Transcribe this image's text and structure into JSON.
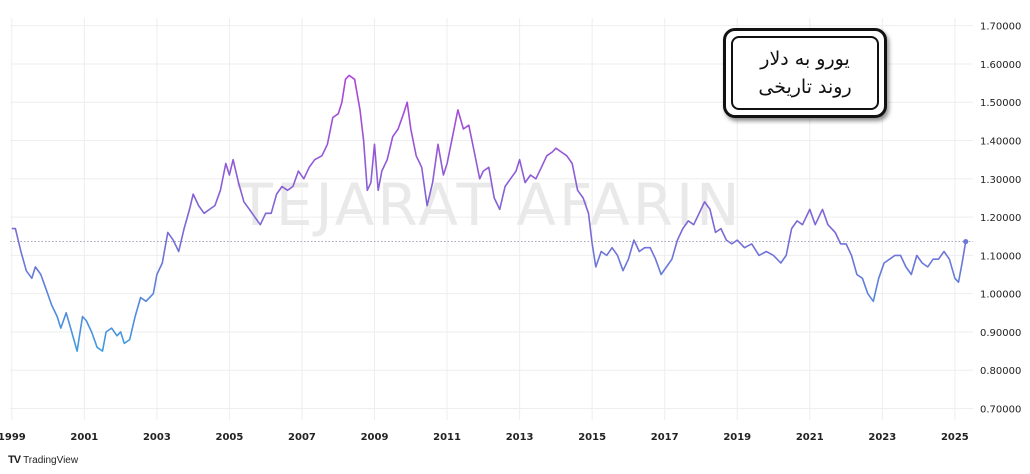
{
  "title": {
    "line1": "یورو به دلار",
    "line2": "روند تاریخی"
  },
  "watermark": "TEJARAT AFARIN",
  "brand": {
    "logo": "TV",
    "name": "TradingView"
  },
  "colors": {
    "line_start": "#3aa0e0",
    "line_mid": "#7a6ad6",
    "line_peak": "#b044d8",
    "reference": "#8888aa",
    "grid": "#eeeeee"
  },
  "chart_data": {
    "type": "line",
    "x_unit": "year",
    "xlim": [
      1998.95,
      2025.5
    ],
    "ylim": [
      0.67,
      1.72
    ],
    "y_ticks": [
      "0.70000",
      "0.80000",
      "0.90000",
      "1.00000",
      "1.10000",
      "1.20000",
      "1.30000",
      "1.40000",
      "1.50000",
      "1.60000",
      "1.70000"
    ],
    "x_ticks": [
      "1999",
      "2001",
      "2003",
      "2005",
      "2007",
      "2009",
      "2011",
      "2013",
      "2015",
      "2017",
      "2019",
      "2021",
      "2023",
      "2025"
    ],
    "reference_line": 1.136,
    "last_value": 1.136,
    "points": [
      [
        1999.0,
        1.17
      ],
      [
        1999.1,
        1.17
      ],
      [
        1999.25,
        1.11
      ],
      [
        1999.4,
        1.06
      ],
      [
        1999.55,
        1.04
      ],
      [
        1999.65,
        1.07
      ],
      [
        1999.8,
        1.05
      ],
      [
        1999.95,
        1.01
      ],
      [
        2000.1,
        0.97
      ],
      [
        2000.25,
        0.94
      ],
      [
        2000.35,
        0.91
      ],
      [
        2000.5,
        0.95
      ],
      [
        2000.65,
        0.9
      ],
      [
        2000.8,
        0.85
      ],
      [
        2000.95,
        0.94
      ],
      [
        2001.05,
        0.93
      ],
      [
        2001.2,
        0.9
      ],
      [
        2001.35,
        0.86
      ],
      [
        2001.5,
        0.85
      ],
      [
        2001.6,
        0.9
      ],
      [
        2001.75,
        0.91
      ],
      [
        2001.9,
        0.89
      ],
      [
        2002.0,
        0.9
      ],
      [
        2002.1,
        0.87
      ],
      [
        2002.25,
        0.88
      ],
      [
        2002.4,
        0.94
      ],
      [
        2002.55,
        0.99
      ],
      [
        2002.7,
        0.98
      ],
      [
        2002.9,
        1.0
      ],
      [
        2003.0,
        1.05
      ],
      [
        2003.15,
        1.08
      ],
      [
        2003.3,
        1.16
      ],
      [
        2003.45,
        1.14
      ],
      [
        2003.6,
        1.11
      ],
      [
        2003.75,
        1.17
      ],
      [
        2003.9,
        1.22
      ],
      [
        2004.0,
        1.26
      ],
      [
        2004.15,
        1.23
      ],
      [
        2004.3,
        1.21
      ],
      [
        2004.45,
        1.22
      ],
      [
        2004.6,
        1.23
      ],
      [
        2004.75,
        1.27
      ],
      [
        2004.9,
        1.34
      ],
      [
        2005.0,
        1.31
      ],
      [
        2005.1,
        1.35
      ],
      [
        2005.25,
        1.29
      ],
      [
        2005.4,
        1.24
      ],
      [
        2005.55,
        1.22
      ],
      [
        2005.7,
        1.2
      ],
      [
        2005.85,
        1.18
      ],
      [
        2006.0,
        1.21
      ],
      [
        2006.15,
        1.21
      ],
      [
        2006.3,
        1.26
      ],
      [
        2006.45,
        1.28
      ],
      [
        2006.6,
        1.27
      ],
      [
        2006.75,
        1.28
      ],
      [
        2006.9,
        1.32
      ],
      [
        2007.05,
        1.3
      ],
      [
        2007.2,
        1.33
      ],
      [
        2007.35,
        1.35
      ],
      [
        2007.55,
        1.36
      ],
      [
        2007.7,
        1.39
      ],
      [
        2007.85,
        1.46
      ],
      [
        2008.0,
        1.47
      ],
      [
        2008.1,
        1.5
      ],
      [
        2008.2,
        1.56
      ],
      [
        2008.3,
        1.57
      ],
      [
        2008.45,
        1.56
      ],
      [
        2008.6,
        1.48
      ],
      [
        2008.7,
        1.4
      ],
      [
        2008.8,
        1.27
      ],
      [
        2008.9,
        1.29
      ],
      [
        2009.0,
        1.39
      ],
      [
        2009.1,
        1.27
      ],
      [
        2009.2,
        1.32
      ],
      [
        2009.35,
        1.35
      ],
      [
        2009.5,
        1.41
      ],
      [
        2009.65,
        1.43
      ],
      [
        2009.8,
        1.47
      ],
      [
        2009.9,
        1.5
      ],
      [
        2010.0,
        1.43
      ],
      [
        2010.15,
        1.36
      ],
      [
        2010.3,
        1.33
      ],
      [
        2010.45,
        1.23
      ],
      [
        2010.6,
        1.29
      ],
      [
        2010.75,
        1.39
      ],
      [
        2010.9,
        1.31
      ],
      [
        2011.0,
        1.34
      ],
      [
        2011.15,
        1.41
      ],
      [
        2011.3,
        1.48
      ],
      [
        2011.45,
        1.43
      ],
      [
        2011.6,
        1.44
      ],
      [
        2011.75,
        1.37
      ],
      [
        2011.9,
        1.3
      ],
      [
        2012.0,
        1.32
      ],
      [
        2012.15,
        1.33
      ],
      [
        2012.3,
        1.25
      ],
      [
        2012.45,
        1.22
      ],
      [
        2012.6,
        1.28
      ],
      [
        2012.75,
        1.3
      ],
      [
        2012.9,
        1.32
      ],
      [
        2013.0,
        1.35
      ],
      [
        2013.15,
        1.29
      ],
      [
        2013.3,
        1.31
      ],
      [
        2013.45,
        1.3
      ],
      [
        2013.6,
        1.33
      ],
      [
        2013.75,
        1.36
      ],
      [
        2013.9,
        1.37
      ],
      [
        2014.0,
        1.38
      ],
      [
        2014.15,
        1.37
      ],
      [
        2014.3,
        1.36
      ],
      [
        2014.45,
        1.34
      ],
      [
        2014.6,
        1.27
      ],
      [
        2014.75,
        1.25
      ],
      [
        2014.9,
        1.21
      ],
      [
        2015.0,
        1.13
      ],
      [
        2015.1,
        1.07
      ],
      [
        2015.25,
        1.11
      ],
      [
        2015.4,
        1.1
      ],
      [
        2015.55,
        1.12
      ],
      [
        2015.7,
        1.1
      ],
      [
        2015.85,
        1.06
      ],
      [
        2016.0,
        1.09
      ],
      [
        2016.15,
        1.14
      ],
      [
        2016.3,
        1.11
      ],
      [
        2016.45,
        1.12
      ],
      [
        2016.6,
        1.12
      ],
      [
        2016.75,
        1.09
      ],
      [
        2016.9,
        1.05
      ],
      [
        2017.05,
        1.07
      ],
      [
        2017.2,
        1.09
      ],
      [
        2017.35,
        1.14
      ],
      [
        2017.5,
        1.17
      ],
      [
        2017.65,
        1.19
      ],
      [
        2017.8,
        1.18
      ],
      [
        2018.0,
        1.22
      ],
      [
        2018.1,
        1.24
      ],
      [
        2018.25,
        1.22
      ],
      [
        2018.4,
        1.16
      ],
      [
        2018.55,
        1.17
      ],
      [
        2018.7,
        1.14
      ],
      [
        2018.85,
        1.13
      ],
      [
        2019.0,
        1.14
      ],
      [
        2019.2,
        1.12
      ],
      [
        2019.4,
        1.13
      ],
      [
        2019.6,
        1.1
      ],
      [
        2019.8,
        1.11
      ],
      [
        2020.0,
        1.1
      ],
      [
        2020.2,
        1.08
      ],
      [
        2020.35,
        1.1
      ],
      [
        2020.5,
        1.17
      ],
      [
        2020.65,
        1.19
      ],
      [
        2020.8,
        1.18
      ],
      [
        2021.0,
        1.22
      ],
      [
        2021.15,
        1.18
      ],
      [
        2021.35,
        1.22
      ],
      [
        2021.5,
        1.18
      ],
      [
        2021.7,
        1.16
      ],
      [
        2021.85,
        1.13
      ],
      [
        2022.0,
        1.13
      ],
      [
        2022.15,
        1.1
      ],
      [
        2022.3,
        1.05
      ],
      [
        2022.45,
        1.04
      ],
      [
        2022.6,
        1.0
      ],
      [
        2022.75,
        0.98
      ],
      [
        2022.9,
        1.04
      ],
      [
        2023.05,
        1.08
      ],
      [
        2023.2,
        1.09
      ],
      [
        2023.35,
        1.1
      ],
      [
        2023.5,
        1.1
      ],
      [
        2023.65,
        1.07
      ],
      [
        2023.8,
        1.05
      ],
      [
        2023.95,
        1.1
      ],
      [
        2024.1,
        1.08
      ],
      [
        2024.25,
        1.07
      ],
      [
        2024.4,
        1.09
      ],
      [
        2024.55,
        1.09
      ],
      [
        2024.7,
        1.11
      ],
      [
        2024.85,
        1.09
      ],
      [
        2025.0,
        1.04
      ],
      [
        2025.1,
        1.03
      ],
      [
        2025.2,
        1.08
      ],
      [
        2025.3,
        1.136
      ]
    ]
  }
}
